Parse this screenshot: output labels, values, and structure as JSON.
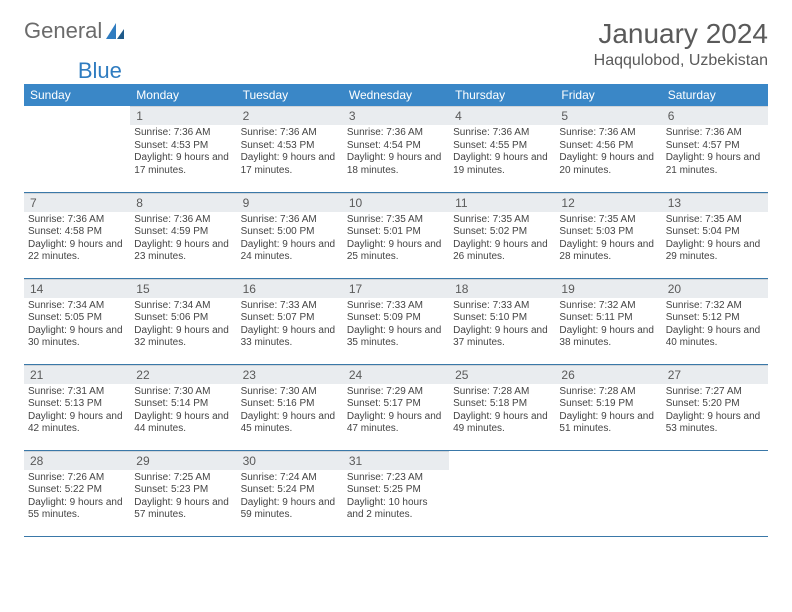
{
  "brand": {
    "part1": "General",
    "part2": "Blue"
  },
  "header": {
    "month": "January 2024",
    "location": "Haqqulobod, Uzbekistan"
  },
  "colors": {
    "header_bg": "#3a87c7",
    "header_fg": "#ffffff",
    "daynum_bg": "#e9ecef",
    "row_divider": "#3a78a8",
    "logo_gray": "#6b6b6b",
    "logo_blue": "#2f7cc0"
  },
  "weekdays": [
    "Sunday",
    "Monday",
    "Tuesday",
    "Wednesday",
    "Thursday",
    "Friday",
    "Saturday"
  ],
  "start_offset": 1,
  "days": [
    {
      "n": 1,
      "sr": "7:36 AM",
      "ss": "4:53 PM",
      "dl": "9 hours and 17 minutes."
    },
    {
      "n": 2,
      "sr": "7:36 AM",
      "ss": "4:53 PM",
      "dl": "9 hours and 17 minutes."
    },
    {
      "n": 3,
      "sr": "7:36 AM",
      "ss": "4:54 PM",
      "dl": "9 hours and 18 minutes."
    },
    {
      "n": 4,
      "sr": "7:36 AM",
      "ss": "4:55 PM",
      "dl": "9 hours and 19 minutes."
    },
    {
      "n": 5,
      "sr": "7:36 AM",
      "ss": "4:56 PM",
      "dl": "9 hours and 20 minutes."
    },
    {
      "n": 6,
      "sr": "7:36 AM",
      "ss": "4:57 PM",
      "dl": "9 hours and 21 minutes."
    },
    {
      "n": 7,
      "sr": "7:36 AM",
      "ss": "4:58 PM",
      "dl": "9 hours and 22 minutes."
    },
    {
      "n": 8,
      "sr": "7:36 AM",
      "ss": "4:59 PM",
      "dl": "9 hours and 23 minutes."
    },
    {
      "n": 9,
      "sr": "7:36 AM",
      "ss": "5:00 PM",
      "dl": "9 hours and 24 minutes."
    },
    {
      "n": 10,
      "sr": "7:35 AM",
      "ss": "5:01 PM",
      "dl": "9 hours and 25 minutes."
    },
    {
      "n": 11,
      "sr": "7:35 AM",
      "ss": "5:02 PM",
      "dl": "9 hours and 26 minutes."
    },
    {
      "n": 12,
      "sr": "7:35 AM",
      "ss": "5:03 PM",
      "dl": "9 hours and 28 minutes."
    },
    {
      "n": 13,
      "sr": "7:35 AM",
      "ss": "5:04 PM",
      "dl": "9 hours and 29 minutes."
    },
    {
      "n": 14,
      "sr": "7:34 AM",
      "ss": "5:05 PM",
      "dl": "9 hours and 30 minutes."
    },
    {
      "n": 15,
      "sr": "7:34 AM",
      "ss": "5:06 PM",
      "dl": "9 hours and 32 minutes."
    },
    {
      "n": 16,
      "sr": "7:33 AM",
      "ss": "5:07 PM",
      "dl": "9 hours and 33 minutes."
    },
    {
      "n": 17,
      "sr": "7:33 AM",
      "ss": "5:09 PM",
      "dl": "9 hours and 35 minutes."
    },
    {
      "n": 18,
      "sr": "7:33 AM",
      "ss": "5:10 PM",
      "dl": "9 hours and 37 minutes."
    },
    {
      "n": 19,
      "sr": "7:32 AM",
      "ss": "5:11 PM",
      "dl": "9 hours and 38 minutes."
    },
    {
      "n": 20,
      "sr": "7:32 AM",
      "ss": "5:12 PM",
      "dl": "9 hours and 40 minutes."
    },
    {
      "n": 21,
      "sr": "7:31 AM",
      "ss": "5:13 PM",
      "dl": "9 hours and 42 minutes."
    },
    {
      "n": 22,
      "sr": "7:30 AM",
      "ss": "5:14 PM",
      "dl": "9 hours and 44 minutes."
    },
    {
      "n": 23,
      "sr": "7:30 AM",
      "ss": "5:16 PM",
      "dl": "9 hours and 45 minutes."
    },
    {
      "n": 24,
      "sr": "7:29 AM",
      "ss": "5:17 PM",
      "dl": "9 hours and 47 minutes."
    },
    {
      "n": 25,
      "sr": "7:28 AM",
      "ss": "5:18 PM",
      "dl": "9 hours and 49 minutes."
    },
    {
      "n": 26,
      "sr": "7:28 AM",
      "ss": "5:19 PM",
      "dl": "9 hours and 51 minutes."
    },
    {
      "n": 27,
      "sr": "7:27 AM",
      "ss": "5:20 PM",
      "dl": "9 hours and 53 minutes."
    },
    {
      "n": 28,
      "sr": "7:26 AM",
      "ss": "5:22 PM",
      "dl": "9 hours and 55 minutes."
    },
    {
      "n": 29,
      "sr": "7:25 AM",
      "ss": "5:23 PM",
      "dl": "9 hours and 57 minutes."
    },
    {
      "n": 30,
      "sr": "7:24 AM",
      "ss": "5:24 PM",
      "dl": "9 hours and 59 minutes."
    },
    {
      "n": 31,
      "sr": "7:23 AM",
      "ss": "5:25 PM",
      "dl": "10 hours and 2 minutes."
    }
  ],
  "labels": {
    "sunrise": "Sunrise:",
    "sunset": "Sunset:",
    "daylight": "Daylight:"
  }
}
